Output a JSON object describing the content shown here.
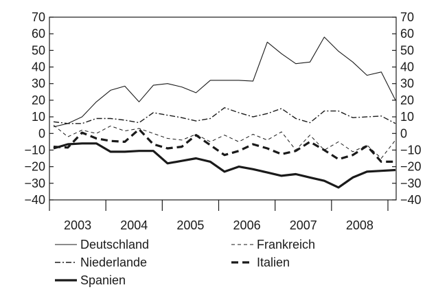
{
  "chart_data": {
    "type": "line",
    "title": "",
    "xlabel": "",
    "ylabel": "",
    "ylim": [
      -40,
      70
    ],
    "yticks": [
      70,
      60,
      50,
      40,
      30,
      20,
      10,
      0,
      -10,
      -20,
      -30,
      -40
    ],
    "ytick_labels": [
      "70",
      "60",
      "50",
      "40",
      "30",
      "20",
      "10",
      "0",
      "−10",
      "−20",
      "−30",
      "−40"
    ],
    "y_axis_on_both_sides": true,
    "grid": false,
    "x_period_start": "2002-Q4",
    "x_period_end": "2008-Q4",
    "year_labels": [
      "2003",
      "2004",
      "2005",
      "2006",
      "2007",
      "2008"
    ],
    "legend_position": "bottom",
    "x": [
      "2002-Q4",
      "2003-Q1",
      "2003-Q2",
      "2003-Q3",
      "2003-Q4",
      "2004-Q1",
      "2004-Q2",
      "2004-Q3",
      "2004-Q4",
      "2005-Q1",
      "2005-Q2",
      "2005-Q3",
      "2005-Q4",
      "2006-Q1",
      "2006-Q2",
      "2006-Q3",
      "2006-Q4",
      "2007-Q1",
      "2007-Q2",
      "2007-Q3",
      "2007-Q4",
      "2008-Q1",
      "2008-Q2",
      "2008-Q3",
      "2008-Q4"
    ],
    "series": [
      {
        "name": "Deutschland",
        "style": "thin-solid",
        "values": [
          4,
          6,
          10,
          19,
          26,
          28.5,
          19,
          29,
          30,
          28,
          24.5,
          32,
          32,
          32,
          31.5,
          55,
          48,
          42,
          43,
          58,
          49.5,
          43,
          35,
          37,
          20
        ]
      },
      {
        "name": "Frankreich",
        "style": "thin-dashed",
        "values": [
          5,
          -2,
          2,
          0,
          4.5,
          1.5,
          3,
          0,
          -3,
          -4,
          -0.5,
          -5,
          -1,
          -5,
          -0.5,
          -4,
          1,
          -10,
          -1,
          -10,
          -5,
          -11,
          -7,
          -15,
          -4
        ]
      },
      {
        "name": "Niederlande",
        "style": "dash-dot",
        "values": [
          7,
          6,
          6,
          9,
          9,
          8,
          6.5,
          12.5,
          11,
          9.5,
          7.5,
          9,
          15.5,
          12.5,
          10,
          12,
          15,
          9,
          6.5,
          13.5,
          13.5,
          9.5,
          10,
          10.5,
          6
        ]
      },
      {
        "name": "Italien",
        "style": "thick-dashed",
        "values": [
          -8,
          -8.5,
          0.5,
          -3,
          -4.5,
          -5,
          2.5,
          -6.5,
          -9,
          -8,
          -1,
          -7,
          -13,
          -10.5,
          -6.5,
          -9,
          -12.5,
          -10.5,
          -5,
          -10,
          -15.5,
          -13,
          -7.5,
          -17,
          -17
        ]
      },
      {
        "name": "Spanien",
        "style": "thick-solid",
        "values": [
          -9,
          -6.5,
          -6,
          -6,
          -11,
          -11,
          -10.5,
          -10.5,
          -18,
          -16.5,
          -15,
          -17,
          -23,
          -20,
          -21.5,
          -23.5,
          -25.5,
          -24.5,
          -26.5,
          -28.5,
          -32.5,
          -26.5,
          -23,
          -22.5,
          -22
        ]
      }
    ]
  }
}
